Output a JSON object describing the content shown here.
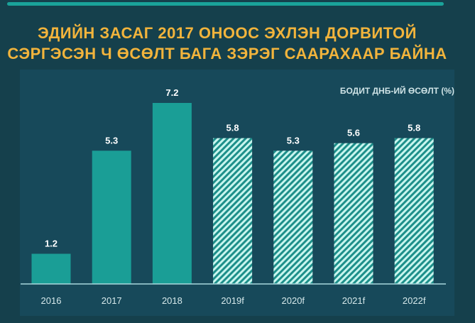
{
  "title_lines": [
    "ЭДИЙН ЗАСАГ 2017 ОНООС ЭХЛЭН ДОРВИТОЙ",
    "СЭРГЭСЭН Ч ӨСӨЛТ БАГА ЗЭРЭГ СААРАХААР БАЙНА"
  ],
  "colors": {
    "actual": "#1a9e96",
    "hatch_light": "#c8f5ee",
    "hatch_dark": "#1d8f8a",
    "title": "#f2b43c"
  },
  "chart_data": {
    "type": "bar",
    "title": "ЭДИЙН ЗАСАГ 2017 ОНООС ЭХЛЭН ДОРВИТОЙ СЭРГЭСЭН Ч ӨСӨЛТ БАГА ЗЭРЭГ СААРАХААР БАЙНА",
    "legend": "БОДИТ ДНБ-ИЙ ӨСӨЛТ (%)",
    "legend_position": "top-right",
    "categories": [
      "2016",
      "2017",
      "2018",
      "2019f",
      "2020f",
      "2021f",
      "2022f"
    ],
    "values": [
      1.2,
      5.3,
      7.2,
      5.8,
      5.3,
      5.6,
      5.8
    ],
    "value_labels": [
      "1.2",
      "5.3",
      "7.2",
      "5.8",
      "5.3",
      "5.6",
      "5.8"
    ],
    "forecast": [
      false,
      false,
      false,
      true,
      true,
      true,
      true
    ],
    "ylim": [
      0,
      7.2
    ],
    "xlabel": "",
    "ylabel": "",
    "grid": false
  }
}
